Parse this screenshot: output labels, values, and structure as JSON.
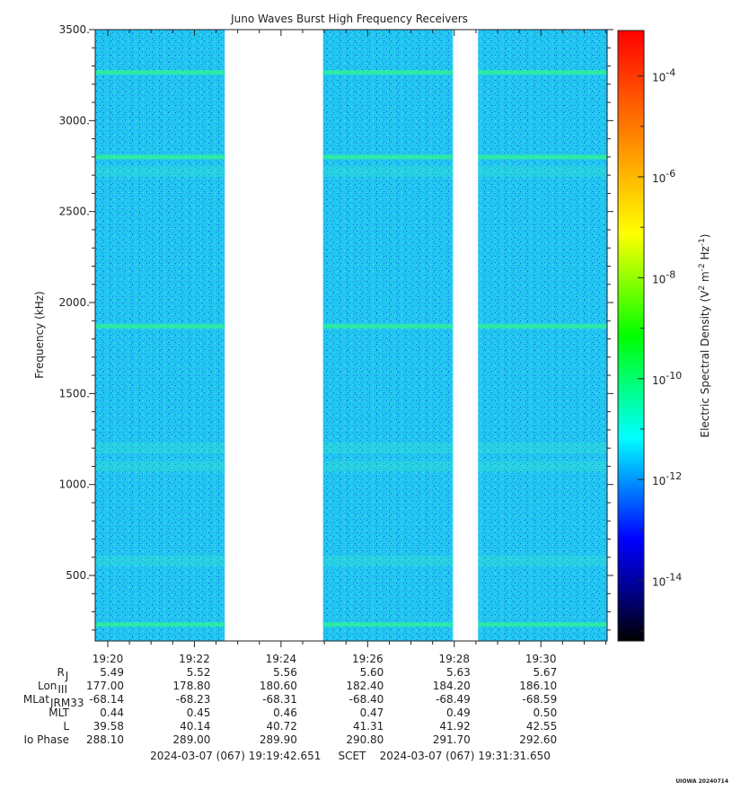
{
  "chart_data": {
    "type": "heatmap",
    "title": "Juno Waves Burst High Frequency Receivers",
    "ylabel": "Frequency (kHz)",
    "ylim": [
      140,
      3500
    ],
    "y_ticks": [
      {
        "value": 500,
        "label": "500."
      },
      {
        "value": 1000,
        "label": "1000."
      },
      {
        "value": 1500,
        "label": "1500."
      },
      {
        "value": 2000,
        "label": "2000."
      },
      {
        "value": 2500,
        "label": "2500."
      },
      {
        "value": 3000,
        "label": "3000."
      },
      {
        "value": 3500,
        "label": "3500."
      }
    ],
    "x_range_minutes": [
      1159.71,
      1171.53
    ],
    "x_ticks": [
      {
        "minutes": 1160,
        "label": "19:20"
      },
      {
        "minutes": 1162,
        "label": "19:22"
      },
      {
        "minutes": 1164,
        "label": "19:24"
      },
      {
        "minutes": 1166,
        "label": "19:26"
      },
      {
        "minutes": 1168,
        "label": "19:28"
      },
      {
        "minutes": 1170,
        "label": "19:30"
      }
    ],
    "data_segments_minutes": [
      [
        1159.71,
        1162.7
      ],
      [
        1164.97,
        1167.97
      ],
      [
        1168.55,
        1171.53
      ]
    ],
    "emission_lines_khz": [
      230,
      1870,
      2800,
      3265
    ],
    "background_bands_khz": [
      580,
      1100,
      1200,
      2720
    ],
    "colorbar": {
      "label": "Electric Spectral Density (V² m⁻² Hz⁻¹)",
      "label_main": "Electric Spectral Density (V",
      "label_sup1": "2",
      "label_mid": " m",
      "label_sup2": "-2",
      "label_mid2": " Hz",
      "label_sup3": "-1",
      "label_end": ")",
      "log_range": [
        -15.2,
        -3.1
      ],
      "ticks": [
        {
          "exp": "-4"
        },
        {
          "exp": "-6"
        },
        {
          "exp": "-8"
        },
        {
          "exp": "-10"
        },
        {
          "exp": "-12"
        },
        {
          "exp": "-14"
        }
      ],
      "colors": [
        "#000000",
        "#00008c",
        "#0000ff",
        "#0080ff",
        "#00ffff",
        "#00ff80",
        "#00ff00",
        "#80ff00",
        "#ffff00",
        "#ffc000",
        "#ff8000",
        "#ff4000",
        "#ff0000"
      ]
    },
    "ephemeris": {
      "rows": [
        {
          "label": "R",
          "sub": "J",
          "values": [
            "5.49",
            "5.52",
            "5.56",
            "5.60",
            "5.63",
            "5.67"
          ]
        },
        {
          "label": "Lon",
          "sub": "III",
          "values": [
            "177.00",
            "178.80",
            "180.60",
            "182.40",
            "184.20",
            "186.10"
          ]
        },
        {
          "label": "MLat",
          "sub": "JRM33",
          "values": [
            "-68.14",
            "-68.23",
            "-68.31",
            "-68.40",
            "-68.49",
            "-68.59"
          ]
        },
        {
          "label": "MLT",
          "sub": "",
          "values": [
            "0.44",
            "0.45",
            "0.46",
            "0.47",
            "0.49",
            "0.50"
          ]
        },
        {
          "label": "L",
          "sub": "",
          "values": [
            "39.58",
            "40.14",
            "40.72",
            "41.31",
            "41.92",
            "42.55"
          ]
        },
        {
          "label": "Io Phase",
          "sub": "",
          "values": [
            "288.10",
            "289.00",
            "289.90",
            "290.80",
            "291.70",
            "292.60"
          ]
        }
      ]
    },
    "time_range_text": "2024-03-07 (067) 19:19:42.651     SCET    2024-03-07 (067) 19:31:31.650",
    "footer_text": "UIOWA 20240714"
  }
}
